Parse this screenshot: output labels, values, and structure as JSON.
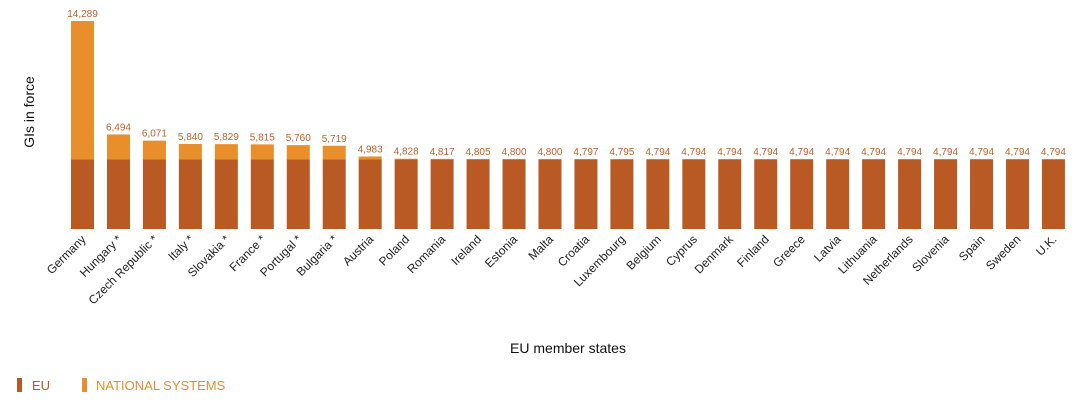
{
  "chart_data": {
    "type": "bar",
    "stacked": true,
    "xlabel": "EU member states",
    "ylabel": "GIs in force",
    "ylim": [
      0,
      14289
    ],
    "grid": false,
    "legend_position": "bottom-left",
    "colors": {
      "eu": "#b95a24",
      "national": "#e88e2a",
      "label": "#c0602a"
    },
    "categories": [
      "Germany",
      "Hungary *",
      "Czech Republic *",
      "Italy *",
      "Slovakia *",
      "France *",
      "Portugal *",
      "Bulgaria *",
      "Austria",
      "Poland",
      "Romania",
      "Ireland",
      "Estonia",
      "Malta",
      "Croatia",
      "Luxembourg",
      "Belgium",
      "Cyprus",
      "Denmark",
      "Finland",
      "Greece",
      "Latvia",
      "Lithuania",
      "Netherlands",
      "Slovenia",
      "Spain",
      "Sweden",
      "U.K."
    ],
    "totals": [
      14289,
      6494,
      6071,
      5840,
      5829,
      5815,
      5760,
      5719,
      4983,
      4828,
      4817,
      4805,
      4800,
      4800,
      4797,
      4795,
      4794,
      4794,
      4794,
      4794,
      4794,
      4794,
      4794,
      4794,
      4794,
      4794,
      4794,
      4794
    ],
    "total_labels": [
      "14,289",
      "6,494",
      "6,071",
      "5,840",
      "5,829",
      "5,815",
      "5,760",
      "5,719",
      "4,983",
      "4,828",
      "4,817",
      "4,805",
      "4,800",
      "4,800",
      "4,797",
      "4,795",
      "4,794",
      "4,794",
      "4,794",
      "4,794",
      "4,794",
      "4,794",
      "4,794",
      "4,794",
      "4,794",
      "4,794",
      "4,794",
      "4,794"
    ],
    "series": [
      {
        "name": "EU",
        "values": [
          4794,
          4794,
          4794,
          4794,
          4794,
          4794,
          4794,
          4794,
          4794,
          4794,
          4794,
          4794,
          4794,
          4794,
          4794,
          4794,
          4794,
          4794,
          4794,
          4794,
          4794,
          4794,
          4794,
          4794,
          4794,
          4794,
          4794,
          4794
        ]
      },
      {
        "name": "NATIONAL SYSTEMS",
        "values": [
          9495,
          1700,
          1277,
          1046,
          1035,
          1021,
          966,
          925,
          189,
          34,
          23,
          11,
          6,
          6,
          3,
          1,
          0,
          0,
          0,
          0,
          0,
          0,
          0,
          0,
          0,
          0,
          0,
          0
        ]
      }
    ]
  }
}
